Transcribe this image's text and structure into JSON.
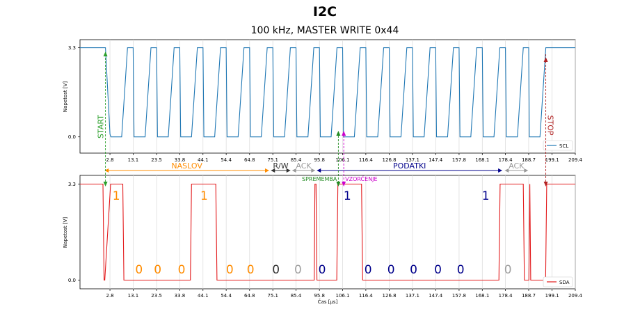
{
  "figure": {
    "title": "I2C",
    "subtitle": "100 kHz, MASTER WRITE 0x44"
  },
  "chart_data": [
    {
      "type": "line",
      "panel": "top",
      "ylabel": "Napetost [V]",
      "xlim": [
        -10.5,
        209.4
      ],
      "ylim": [
        -0.6,
        3.6
      ],
      "yticks": [
        0.0,
        3.3
      ],
      "ytick_labels": [
        "0.0",
        "3.3"
      ],
      "xticks": [
        2.8,
        13.1,
        23.5,
        33.8,
        44.1,
        54.4,
        64.8,
        75.1,
        85.4,
        95.8,
        106.1,
        116.4,
        126.8,
        137.1,
        147.4,
        157.8,
        168.1,
        178.4,
        188.7,
        199.1,
        209.4
      ],
      "xtick_labels": [
        "2.8",
        "13.1",
        "23.5",
        "33.8",
        "44.1",
        "54.4",
        "64.8",
        "75.1",
        "85.4",
        "95.8",
        "106.1",
        "116.4",
        "126.8",
        "137.1",
        "147.4",
        "157.8",
        "168.1",
        "178.4",
        "188.7",
        "199.1",
        "209.4"
      ],
      "grid": "vertical",
      "legend": "lower-right",
      "color": "#1f77b4",
      "series": [
        {
          "name": "SCL",
          "x": [
            -10.5,
            -1.5,
            0.8,
            2.8,
            3.2,
            8.0,
            10.6,
            13.1,
            13.5,
            18.4,
            21.0,
            23.5,
            23.9,
            28.7,
            31.3,
            33.8,
            34.2,
            39.0,
            41.6,
            44.1,
            44.5,
            49.3,
            51.9,
            54.4,
            54.8,
            59.7,
            62.3,
            64.8,
            65.2,
            70.0,
            72.6,
            75.1,
            75.5,
            80.3,
            82.9,
            85.4,
            85.8,
            90.7,
            93.3,
            95.8,
            96.2,
            101.0,
            103.6,
            106.1,
            106.5,
            111.3,
            113.9,
            116.4,
            116.8,
            121.7,
            124.3,
            126.8,
            127.2,
            132.0,
            134.6,
            137.1,
            137.5,
            142.3,
            144.9,
            147.4,
            147.8,
            152.7,
            155.3,
            157.8,
            158.2,
            163.0,
            165.6,
            168.1,
            168.5,
            173.3,
            175.9,
            178.4,
            178.8,
            183.7,
            186.3,
            188.7,
            189.0,
            193.7,
            196.3,
            199.1,
            209.4
          ],
          "y": [
            3.3,
            3.3,
            3.3,
            0.1,
            0.0,
            0.0,
            3.3,
            3.3,
            0.0,
            0.0,
            3.3,
            3.3,
            0.0,
            0.0,
            3.3,
            3.3,
            0.0,
            0.0,
            3.3,
            3.3,
            0.0,
            0.0,
            3.3,
            3.3,
            0.0,
            0.0,
            3.3,
            3.3,
            0.0,
            0.0,
            3.3,
            3.3,
            0.0,
            0.0,
            3.3,
            3.3,
            0.0,
            0.0,
            3.3,
            3.3,
            0.0,
            0.0,
            3.3,
            3.3,
            0.0,
            0.0,
            3.3,
            3.3,
            0.0,
            0.0,
            3.3,
            3.3,
            0.0,
            0.0,
            3.3,
            3.3,
            0.0,
            0.0,
            3.3,
            3.3,
            0.0,
            0.0,
            3.3,
            3.3,
            0.0,
            0.0,
            3.3,
            3.3,
            0.0,
            0.0,
            3.3,
            3.3,
            0.0,
            0.0,
            3.3,
            3.3,
            0.0,
            0.0,
            3.3,
            3.3,
            3.3
          ]
        }
      ],
      "annotations": [
        {
          "id": "start",
          "text": "START",
          "x": 0.8,
          "color": "#2ca02c",
          "rotation": -90
        },
        {
          "id": "stop",
          "text": "STOP",
          "x": 196.3,
          "color": "#b22222",
          "rotation": 90
        }
      ]
    },
    {
      "type": "line",
      "panel": "bottom",
      "ylabel": "Napetost [V]",
      "xlabel": "Čas [μs]",
      "xlim": [
        -10.5,
        209.4
      ],
      "ylim": [
        -0.3,
        3.6
      ],
      "yticks": [
        0.0,
        3.3
      ],
      "ytick_labels": [
        "0.0",
        "3.3"
      ],
      "xticks": [
        2.8,
        13.1,
        23.5,
        33.8,
        44.1,
        54.4,
        64.8,
        75.1,
        85.4,
        95.8,
        106.1,
        116.4,
        126.8,
        137.1,
        147.4,
        157.8,
        168.1,
        178.4,
        188.7,
        199.1,
        209.4
      ],
      "xtick_labels": [
        "2.8",
        "13.1",
        "23.5",
        "33.8",
        "44.1",
        "54.4",
        "64.8",
        "75.1",
        "85.4",
        "95.8",
        "106.1",
        "116.4",
        "126.8",
        "137.1",
        "147.4",
        "157.8",
        "168.1",
        "178.4",
        "188.7",
        "199.1",
        "209.4"
      ],
      "grid": "vertical",
      "legend": "lower-right",
      "color": "#e31a1c",
      "series": [
        {
          "name": "SDA",
          "x": [
            -10.5,
            -0.3,
            0.2,
            0.5,
            3.1,
            3.6,
            8.5,
            9.0,
            38.5,
            39.0,
            49.8,
            50.3,
            93.5,
            93.8,
            94.3,
            94.7,
            103.5,
            104.0,
            114.5,
            115.0,
            175.5,
            176.0,
            186.3,
            186.8,
            188.8,
            189.2,
            189.6,
            196.2,
            196.7,
            209.4
          ],
          "y": [
            3.3,
            3.3,
            0.0,
            0.0,
            3.3,
            3.3,
            3.3,
            0.0,
            0.0,
            3.3,
            3.3,
            0.0,
            0.0,
            3.3,
            3.3,
            0.0,
            0.0,
            3.3,
            3.3,
            0.0,
            0.0,
            3.3,
            3.3,
            0.0,
            0.0,
            3.3,
            0.0,
            0.0,
            3.3,
            3.3
          ]
        }
      ],
      "bit_labels": [
        {
          "text": "1",
          "x": 5.6,
          "color": "#ff8c00",
          "row": "high"
        },
        {
          "text": "0",
          "x": 15.7,
          "color": "#ff8c00",
          "row": "low"
        },
        {
          "text": "0",
          "x": 24.0,
          "color": "#ff8c00",
          "row": "low"
        },
        {
          "text": "0",
          "x": 34.6,
          "color": "#ff8c00",
          "row": "low"
        },
        {
          "text": "1",
          "x": 44.6,
          "color": "#ff8c00",
          "row": "high"
        },
        {
          "text": "0",
          "x": 56.0,
          "color": "#ff8c00",
          "row": "low"
        },
        {
          "text": "0",
          "x": 65.2,
          "color": "#ff8c00",
          "row": "low"
        },
        {
          "text": "0",
          "x": 76.5,
          "color": "#333333",
          "row": "low"
        },
        {
          "text": "0",
          "x": 86.3,
          "color": "#a0a0a0",
          "row": "low"
        },
        {
          "text": "0",
          "x": 97.0,
          "color": "#00008b",
          "row": "low"
        },
        {
          "text": "1",
          "x": 108.2,
          "color": "#00008b",
          "row": "high"
        },
        {
          "text": "0",
          "x": 117.4,
          "color": "#00008b",
          "row": "low"
        },
        {
          "text": "0",
          "x": 127.6,
          "color": "#00008b",
          "row": "low"
        },
        {
          "text": "0",
          "x": 137.6,
          "color": "#00008b",
          "row": "low"
        },
        {
          "text": "0",
          "x": 148.4,
          "color": "#00008b",
          "row": "low"
        },
        {
          "text": "0",
          "x": 158.5,
          "color": "#00008b",
          "row": "low"
        },
        {
          "text": "1",
          "x": 169.6,
          "color": "#00008b",
          "row": "high"
        },
        {
          "text": "0",
          "x": 179.5,
          "color": "#a0a0a0",
          "row": "low"
        }
      ]
    }
  ],
  "markers": [
    {
      "id": "spremen",
      "text": "SPREMEMBA",
      "x": 104.2,
      "color": "#228b22",
      "anchor": "right"
    },
    {
      "id": "vzorcenje",
      "text": "VZORČENJE",
      "x": 106.6,
      "color": "#cc00cc",
      "anchor": "left"
    }
  ],
  "segments": [
    {
      "id": "naslov",
      "text": "NASLOV",
      "x0": 0.4,
      "x1": 73.5,
      "color": "#ff8c00"
    },
    {
      "id": "rw",
      "text": "R/W",
      "x0": 74.2,
      "x1": 83.0,
      "color": "#333333"
    },
    {
      "id": "ack1",
      "text": "ACK",
      "x0": 83.6,
      "x1": 94.0,
      "color": "#999999"
    },
    {
      "id": "podatki",
      "text": "PODATKI",
      "x0": 94.6,
      "x1": 177.0,
      "color": "#00008b"
    },
    {
      "id": "ack2",
      "text": "ACK",
      "x0": 178.0,
      "x1": 188.5,
      "color": "#999999"
    }
  ]
}
